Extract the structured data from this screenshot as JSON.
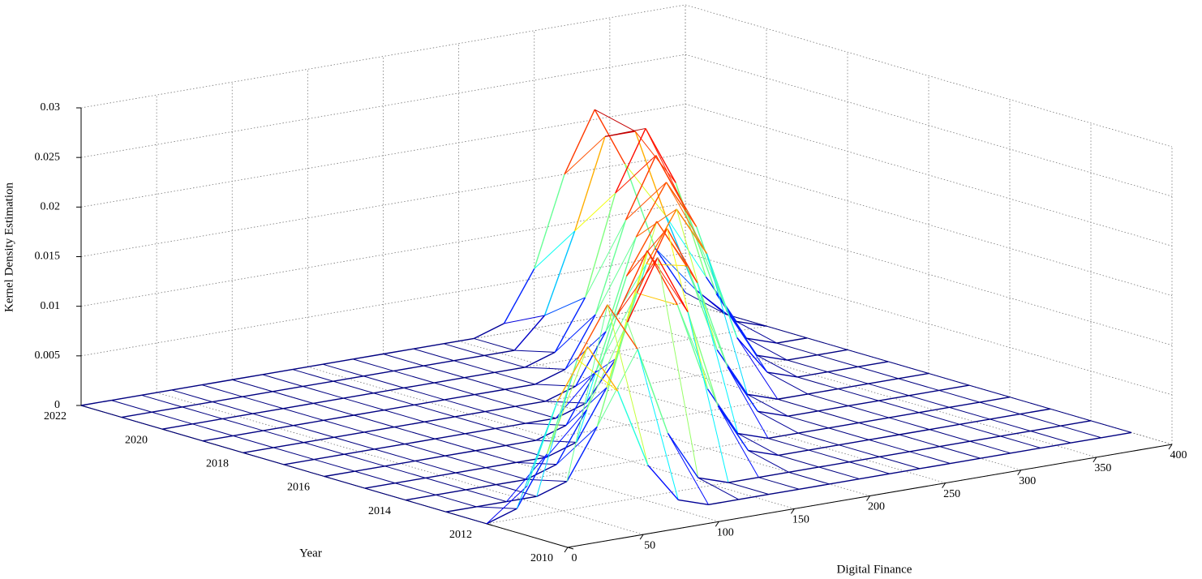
{
  "chart_data": {
    "type": "surface3d",
    "xlabel": "Digital Finance",
    "ylabel": "Year",
    "zlabel": "Kernel Density Estimation",
    "x": [
      0,
      20,
      40,
      60,
      80,
      100,
      120,
      140,
      160,
      180,
      200,
      220,
      240,
      260,
      280,
      300,
      320,
      340,
      360,
      380,
      400
    ],
    "series": [
      {
        "year": 2011,
        "values": [
          0.005,
          0.013,
          0.018,
          0.013,
          0.005,
          0.001,
          0,
          0,
          0,
          0,
          0,
          0,
          0,
          0,
          0,
          0,
          0,
          0,
          0,
          0,
          0
        ]
      },
      {
        "year": 2012,
        "values": [
          0,
          0.001,
          0.006,
          0.015,
          0.02,
          0.015,
          0.006,
          0.001,
          0,
          0,
          0,
          0,
          0,
          0,
          0,
          0,
          0,
          0,
          0,
          0,
          0
        ]
      },
      {
        "year": 2013,
        "values": [
          0,
          0,
          0,
          0,
          0.001,
          0.006,
          0.016,
          0.022,
          0.016,
          0.006,
          0.001,
          0,
          0,
          0,
          0,
          0,
          0,
          0,
          0,
          0,
          0
        ]
      },
      {
        "year": 2014,
        "values": [
          0,
          0,
          0,
          0,
          0,
          0.001,
          0.006,
          0.015,
          0.021,
          0.015,
          0.006,
          0.001,
          0,
          0,
          0,
          0,
          0,
          0,
          0,
          0,
          0
        ]
      },
      {
        "year": 2015,
        "values": [
          0,
          0,
          0,
          0,
          0,
          0,
          0,
          0.001,
          0.006,
          0.015,
          0.021,
          0.015,
          0.006,
          0.001,
          0,
          0,
          0,
          0,
          0,
          0,
          0
        ]
      },
      {
        "year": 2016,
        "values": [
          0,
          0,
          0,
          0,
          0,
          0,
          0,
          0,
          0.001,
          0.006,
          0.015,
          0.02,
          0.015,
          0.006,
          0.001,
          0,
          0,
          0,
          0,
          0,
          0
        ]
      },
      {
        "year": 2017,
        "values": [
          0,
          0,
          0,
          0,
          0,
          0,
          0,
          0,
          0,
          0,
          0.001,
          0.005,
          0.014,
          0.019,
          0.014,
          0.005,
          0.001,
          0,
          0,
          0,
          0
        ]
      },
      {
        "year": 2018,
        "values": [
          0,
          0,
          0,
          0,
          0,
          0,
          0,
          0,
          0,
          0,
          0,
          0.001,
          0.006,
          0.015,
          0.02,
          0.015,
          0.006,
          0.001,
          0,
          0,
          0
        ]
      },
      {
        "year": 2019,
        "values": [
          0,
          0,
          0,
          0,
          0,
          0,
          0,
          0,
          0,
          0,
          0,
          0,
          0.001,
          0.006,
          0.015,
          0.021,
          0.015,
          0.006,
          0.001,
          0,
          0
        ]
      },
      {
        "year": 2020,
        "values": [
          0,
          0,
          0,
          0,
          0,
          0,
          0,
          0,
          0,
          0,
          0,
          0,
          0,
          0.001,
          0.006,
          0.016,
          0.022,
          0.016,
          0.006,
          0.001,
          0
        ]
      },
      {
        "year": 2021,
        "values": [
          0,
          0,
          0,
          0,
          0,
          0,
          0,
          0,
          0,
          0,
          0,
          0,
          0,
          0,
          0.003,
          0.011,
          0.02,
          0.02,
          0.011,
          0.003,
          0
        ]
      },
      {
        "year": 2022,
        "values": [
          0,
          0,
          0,
          0,
          0,
          0,
          0,
          0,
          0,
          0,
          0,
          0,
          0,
          0,
          0.001,
          0.006,
          0.015,
          0.021,
          0.015,
          0.006,
          0.001
        ]
      }
    ],
    "xlim": [
      0,
      400
    ],
    "xticks": [
      0,
      50,
      100,
      150,
      200,
      250,
      300,
      350,
      400
    ],
    "ylim": [
      2010,
      2022
    ],
    "yticks": [
      2010,
      2012,
      2014,
      2016,
      2018,
      2020,
      2022
    ],
    "zlim": [
      0,
      0.03
    ],
    "zticks": [
      0,
      0.005,
      0.01,
      0.015,
      0.02,
      0.025,
      0.03
    ],
    "grid": true,
    "colormap": "jet"
  }
}
